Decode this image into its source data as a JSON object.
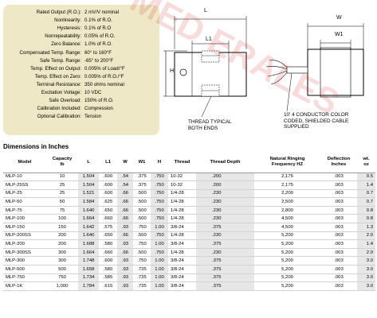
{
  "specs": [
    {
      "key": "Rated Output (R.O.):",
      "value": "2 mV/V nominal"
    },
    {
      "key": "Nonlinearity:",
      "value": "0.1% of R.O."
    },
    {
      "key": "Hysteresis:",
      "value": "0.1% of R.O"
    },
    {
      "key": "Nonrepeatability:",
      "value": "0.05% of R.O."
    },
    {
      "key": "Zero Balance:",
      "value": "1.0% of R.O."
    },
    {
      "key": "Compensated Temp. Range:",
      "value": "60° to 160°F"
    },
    {
      "key": "Safe Temp. Range:",
      "value": "-65° to 200°F"
    },
    {
      "key": "Temp. Effect on Output:",
      "value": "0.005% of Load/°F"
    },
    {
      "key": "Temp. Effect on Zero:",
      "value": "0.005% of R.O./°F"
    },
    {
      "key": "Terminal Resistance:",
      "value": "350 ohms nominal"
    },
    {
      "key": "Excitation Voltage:",
      "value": "10 VDC"
    },
    {
      "key": "Safe Overload:",
      "value": "150% of R.O."
    },
    {
      "key": "Calibration Included:",
      "value": "Compression"
    },
    {
      "key": "Optional Calibration:",
      "value": "Tension"
    }
  ],
  "diagram_front": {
    "label_l": "L",
    "label_l1": "L1",
    "label_h": "H",
    "caption_line1": "THREAD TYPICAL",
    "caption_line2": "BOTH ENDS"
  },
  "diagram_side": {
    "label_w": "W",
    "label_w1": "W1",
    "caption_line1": "10' 4 CONDUCTOR COLOR",
    "caption_line2": "CODED, SHIELDED CABLE",
    "caption_line3": "SUPPLIED"
  },
  "watermark_text": "MED ERALES",
  "section_title": "Dimensions in Inches",
  "table": {
    "headers": {
      "model": "Model",
      "capacity_1": "Capacity",
      "capacity_2": "lb",
      "l": "L",
      "l1": "L1",
      "w": "W",
      "w1": "W1",
      "h": "H",
      "thread": "Thread",
      "thread_depth": "Thread Depth",
      "nat_1": "Natural Ringing",
      "nat_2": "Frequency HZ",
      "defl_1": "Deflection",
      "defl_2": "Inches",
      "wt_1": "wt.",
      "wt_2": "oz"
    },
    "rows": [
      [
        "MLP-10",
        "10",
        "1.504",
        ".600",
        ".54",
        ".375",
        ".750",
        "10-32",
        ".200",
        "2,175",
        ".003",
        "0.5"
      ],
      [
        "MLP-25SS",
        "25",
        "1.504",
        ".600",
        ".54",
        ".375",
        ".750",
        "10-32",
        ".200",
        "2,175",
        ".003",
        "1.4"
      ],
      [
        "MLP-25",
        "25",
        "1.521",
        ".600",
        ".66",
        ".500",
        ".750",
        "1/4-28",
        ".230",
        "2,200",
        ".003",
        "0.7"
      ],
      [
        "MLP-50",
        "50",
        "1.584",
        ".625",
        ".66",
        ".500",
        ".750",
        "1/4-28",
        ".230",
        "2,500",
        ".003",
        "0.7"
      ],
      [
        "MLP-75",
        "75",
        "1.640",
        ".650",
        ".66",
        ".500",
        ".750",
        "1/4-28",
        ".230",
        "2,800",
        ".003",
        "0.8"
      ],
      [
        "MLP-100",
        "100",
        "1.664",
        ".660",
        ".66",
        ".500",
        ".750",
        "1/4-28",
        ".230",
        "4,500",
        ".003",
        "0.8"
      ],
      [
        "MLP-150",
        "150",
        "1.642",
        ".575",
        ".93",
        ".750",
        "1.00",
        "3/8-24",
        ".375",
        "4,500",
        ".003",
        "1.3"
      ],
      [
        "MLP-200SS",
        "200",
        "1.640",
        ".650",
        ".66",
        ".500",
        ".750",
        "1/4-28",
        ".230",
        "5,200",
        ".003",
        "2.0"
      ],
      [
        "MLP-200",
        "200",
        "1.688",
        ".580",
        ".93",
        ".750",
        "1.00",
        "3/8-24",
        ".375",
        "5,200",
        ".003",
        "1.4"
      ],
      [
        "MLP-300SS",
        "300",
        "1.664",
        ".660",
        ".66",
        ".500",
        ".750",
        "1/4-28",
        ".230",
        "5,200",
        ".003",
        "2.0"
      ],
      [
        "MLP-300",
        "300",
        "1.748",
        ".600",
        ".93",
        ".750",
        "1.00",
        "3/8-24",
        ".375",
        "5,200",
        ".003",
        "3.0"
      ],
      [
        "MLP-500",
        "500",
        "1.658",
        ".580",
        ".93",
        ".735",
        "1.00",
        "3/8-24",
        ".375",
        "5,200",
        ".003",
        "3.0"
      ],
      [
        "MLP-750",
        "750",
        "1.734",
        ".585",
        ".93",
        ".735",
        "1.00",
        "3/8-24",
        ".375",
        "5,200",
        ".003",
        "3.0"
      ],
      [
        "MLP-1K",
        "1,000",
        "1.784",
        ".615",
        ".93",
        ".735",
        "1.00",
        "3/8-24",
        ".375",
        "5,200",
        ".003",
        "3.0"
      ]
    ]
  },
  "colors": {
    "spec_background": "#efe8c6",
    "shaded_column": "#e7e7e7",
    "watermark": "#d22828"
  }
}
